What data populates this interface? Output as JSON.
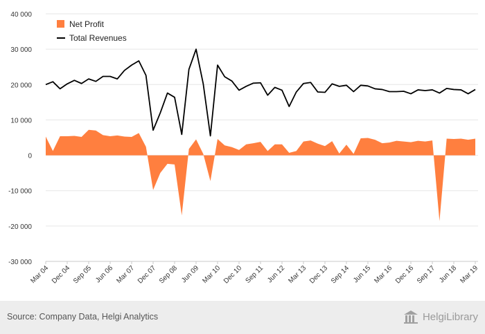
{
  "chart_data": {
    "type": "area",
    "title": "",
    "xlabel": "",
    "ylabel": "",
    "ylim": [
      -30000,
      40000
    ],
    "y_ticks": [
      -30000,
      -20000,
      -10000,
      0,
      10000,
      20000,
      30000,
      40000
    ],
    "y_tick_labels": [
      "-30 000",
      "-20 000",
      "-10 000",
      "0",
      "10 000",
      "20 000",
      "30 000",
      "40 000"
    ],
    "x_tick_labels": [
      "Mar 04",
      "Dec 04",
      "Sep 05",
      "Jun 06",
      "Mar 07",
      "Dec 07",
      "Sep 08",
      "Jun 09",
      "Mar 10",
      "Dec 10",
      "Sep 11",
      "Jun 12",
      "Mar 13",
      "Dec 13",
      "Sep 14",
      "Jun 15",
      "Mar 16",
      "Dec 16",
      "Sep 17",
      "Jun 18",
      "Mar 19"
    ],
    "x_tick_index_step": 3,
    "grid": true,
    "legend": "top-left",
    "series": [
      {
        "name": "Net Profit",
        "kind": "area",
        "color": "#ff7f3f",
        "values": [
          5300,
          1200,
          5400,
          5400,
          5500,
          5200,
          7200,
          7000,
          5700,
          5400,
          5600,
          5300,
          5200,
          6300,
          2400,
          -9800,
          -5000,
          -2400,
          -2600,
          -17000,
          1800,
          4500,
          400,
          -7300,
          4600,
          2800,
          2300,
          1500,
          3100,
          3400,
          3800,
          1200,
          3100,
          3100,
          700,
          1200,
          3900,
          4200,
          3300,
          2600,
          4000,
          500,
          3000,
          400,
          4800,
          4900,
          4400,
          3400,
          3600,
          4100,
          3900,
          3700,
          4100,
          3900,
          4200,
          -18600,
          4700,
          4600,
          4700,
          4400,
          4700
        ]
      },
      {
        "name": "Total Revenues",
        "kind": "line",
        "color": "#000000",
        "values": [
          20000,
          20800,
          18800,
          20200,
          21200,
          20300,
          21600,
          20900,
          22300,
          22300,
          21600,
          24000,
          25500,
          26700,
          22600,
          7100,
          12000,
          17600,
          16400,
          5900,
          24300,
          30000,
          20200,
          5500,
          25500,
          22200,
          21000,
          18400,
          19500,
          20400,
          20500,
          17000,
          19200,
          18400,
          13800,
          17900,
          20300,
          20600,
          17900,
          17800,
          20200,
          19500,
          19800,
          18000,
          19800,
          19600,
          18800,
          18600,
          18000,
          18000,
          18100,
          17400,
          18500,
          18300,
          18500,
          17600,
          18900,
          18600,
          18500,
          17400,
          18600
        ]
      }
    ]
  },
  "legend": {
    "net_profit_label": "Net Profit",
    "total_revenues_label": "Total Revenues"
  },
  "footer": {
    "source": "Source: Company Data, Helgi Analytics",
    "brand": "HelgiLibrary"
  },
  "colors": {
    "net_profit": "#ff7f3f",
    "total_revenues": "#000000",
    "grid": "#e6e6e6",
    "footer_bg": "#ededed"
  }
}
